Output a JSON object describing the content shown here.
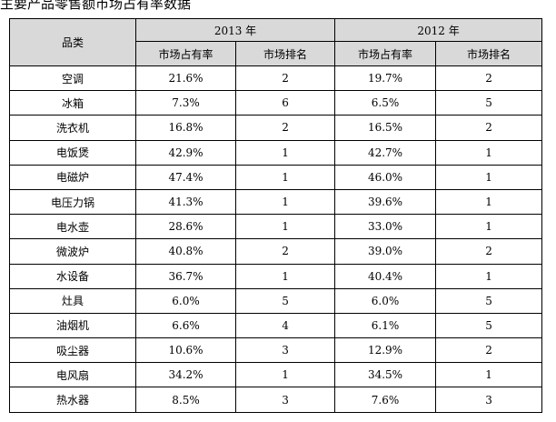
{
  "title": "主要产品零售额市场占有率数据",
  "table": {
    "category_header": "品类",
    "year_a": "2013 年",
    "year_b": "2012 年",
    "share_header": "市场占有率",
    "rank_header": "市场排名",
    "rows": [
      {
        "category": "空调",
        "share_2013": "21.6%",
        "rank_2013": "2",
        "share_2012": "19.7%",
        "rank_2012": "2"
      },
      {
        "category": "冰箱",
        "share_2013": "7.3%",
        "rank_2013": "6",
        "share_2012": "6.5%",
        "rank_2012": "5"
      },
      {
        "category": "洗衣机",
        "share_2013": "16.8%",
        "rank_2013": "2",
        "share_2012": "16.5%",
        "rank_2012": "2"
      },
      {
        "category": "电饭煲",
        "share_2013": "42.9%",
        "rank_2013": "1",
        "share_2012": "42.7%",
        "rank_2012": "1"
      },
      {
        "category": "电磁炉",
        "share_2013": "47.4%",
        "rank_2013": "1",
        "share_2012": "46.0%",
        "rank_2012": "1"
      },
      {
        "category": "电压力锅",
        "share_2013": "41.3%",
        "rank_2013": "1",
        "share_2012": "39.6%",
        "rank_2012": "1"
      },
      {
        "category": "电水壶",
        "share_2013": "28.6%",
        "rank_2013": "1",
        "share_2012": "33.0%",
        "rank_2012": "1"
      },
      {
        "category": "微波炉",
        "share_2013": "40.8%",
        "rank_2013": "2",
        "share_2012": "39.0%",
        "rank_2012": "2"
      },
      {
        "category": "水设备",
        "share_2013": "36.7%",
        "rank_2013": "1",
        "share_2012": "40.4%",
        "rank_2012": "1"
      },
      {
        "category": "灶具",
        "share_2013": "6.0%",
        "rank_2013": "5",
        "share_2012": "6.0%",
        "rank_2012": "5"
      },
      {
        "category": "油烟机",
        "share_2013": "6.6%",
        "rank_2013": "4",
        "share_2012": "6.1%",
        "rank_2012": "5"
      },
      {
        "category": "吸尘器",
        "share_2013": "10.6%",
        "rank_2013": "3",
        "share_2012": "12.9%",
        "rank_2012": "2"
      },
      {
        "category": "电风扇",
        "share_2013": "34.2%",
        "rank_2013": "1",
        "share_2012": "34.5%",
        "rank_2012": "1"
      },
      {
        "category": "热水器",
        "share_2013": "8.5%",
        "rank_2013": "3",
        "share_2012": "7.6%",
        "rank_2012": "3"
      }
    ]
  }
}
